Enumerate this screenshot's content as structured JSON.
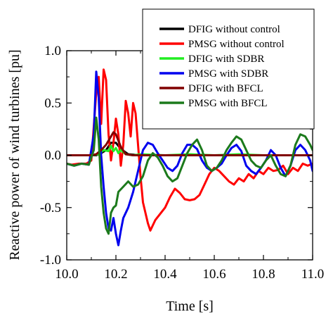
{
  "chart_data": {
    "type": "line",
    "xlabel": "Time [s]",
    "ylabel": "Reactive power of wind turbines [pu]",
    "xlim": [
      10.0,
      11.0
    ],
    "ylim": [
      -1.0,
      1.0
    ],
    "xticks": [
      10.0,
      10.2,
      10.4,
      10.6,
      10.8,
      11.0
    ],
    "xtick_labels": [
      "10.0",
      "10.2",
      "10.4",
      "10.6",
      "10.8",
      "11.0"
    ],
    "yticks": [
      1.0,
      0.5,
      0.0,
      -0.5,
      -1.0
    ],
    "ytick_labels": [
      "1.0",
      "0.5",
      "0.0",
      "-0.5",
      "-1.0"
    ],
    "grid": false,
    "legend_position": "top-right",
    "series": [
      {
        "name": "DFIG without control",
        "color": "#000000",
        "points": [
          [
            10.0,
            0.0
          ],
          [
            10.1,
            0.0
          ],
          [
            10.12,
            0.0
          ],
          [
            10.14,
            0.02
          ],
          [
            10.16,
            0.05
          ],
          [
            10.18,
            0.12
          ],
          [
            10.2,
            0.12
          ],
          [
            10.22,
            0.06
          ],
          [
            10.25,
            0.01
          ],
          [
            10.3,
            0.0
          ],
          [
            11.0,
            0.0
          ]
        ]
      },
      {
        "name": "PMSG without control",
        "color": "#ff0000",
        "points": [
          [
            10.0,
            -0.08
          ],
          [
            10.02,
            -0.09
          ],
          [
            10.05,
            -0.08
          ],
          [
            10.08,
            -0.08
          ],
          [
            10.1,
            -0.05
          ],
          [
            10.12,
            0.6
          ],
          [
            10.13,
            0.75
          ],
          [
            10.14,
            0.3
          ],
          [
            10.15,
            0.82
          ],
          [
            10.16,
            0.72
          ],
          [
            10.17,
            0.2
          ],
          [
            10.18,
            -0.05
          ],
          [
            10.19,
            0.12
          ],
          [
            10.2,
            0.35
          ],
          [
            10.21,
            0.2
          ],
          [
            10.22,
            -0.1
          ],
          [
            10.23,
            0.1
          ],
          [
            10.24,
            0.52
          ],
          [
            10.25,
            0.4
          ],
          [
            10.26,
            0.18
          ],
          [
            10.27,
            0.5
          ],
          [
            10.28,
            0.4
          ],
          [
            10.29,
            0.1
          ],
          [
            10.3,
            -0.2
          ],
          [
            10.31,
            -0.45
          ],
          [
            10.33,
            -0.65
          ],
          [
            10.34,
            -0.72
          ],
          [
            10.36,
            -0.62
          ],
          [
            10.38,
            -0.56
          ],
          [
            10.4,
            -0.5
          ],
          [
            10.42,
            -0.4
          ],
          [
            10.44,
            -0.32
          ],
          [
            10.46,
            -0.36
          ],
          [
            10.48,
            -0.42
          ],
          [
            10.5,
            -0.43
          ],
          [
            10.52,
            -0.42
          ],
          [
            10.54,
            -0.38
          ],
          [
            10.56,
            -0.28
          ],
          [
            10.58,
            -0.18
          ],
          [
            10.6,
            -0.12
          ],
          [
            10.62,
            -0.15
          ],
          [
            10.64,
            -0.2
          ],
          [
            10.66,
            -0.25
          ],
          [
            10.68,
            -0.28
          ],
          [
            10.7,
            -0.22
          ],
          [
            10.72,
            -0.25
          ],
          [
            10.74,
            -0.18
          ],
          [
            10.76,
            -0.22
          ],
          [
            10.78,
            -0.15
          ],
          [
            10.8,
            -0.18
          ],
          [
            10.82,
            -0.12
          ],
          [
            10.84,
            -0.15
          ],
          [
            10.86,
            -0.14
          ],
          [
            10.88,
            -0.1
          ],
          [
            10.9,
            -0.18
          ],
          [
            10.92,
            -0.12
          ],
          [
            10.94,
            -0.15
          ],
          [
            10.96,
            -0.08
          ],
          [
            10.98,
            -0.1
          ],
          [
            11.0,
            -0.08
          ]
        ]
      },
      {
        "name": "DFIG with SDBR",
        "color": "#22ee22",
        "points": [
          [
            10.0,
            0.0
          ],
          [
            10.1,
            0.0
          ],
          [
            10.13,
            0.01
          ],
          [
            10.15,
            0.05
          ],
          [
            10.17,
            0.04
          ],
          [
            10.18,
            0.09
          ],
          [
            10.19,
            0.04
          ],
          [
            10.2,
            0.07
          ],
          [
            10.21,
            0.02
          ],
          [
            10.22,
            0.05
          ],
          [
            10.24,
            0.01
          ],
          [
            10.27,
            0.0
          ],
          [
            10.3,
            0.01
          ],
          [
            10.4,
            0.0
          ],
          [
            10.5,
            0.01
          ],
          [
            10.6,
            0.0
          ],
          [
            10.7,
            0.01
          ],
          [
            10.8,
            0.0
          ],
          [
            11.0,
            0.0
          ]
        ]
      },
      {
        "name": "PMSG with SDBR",
        "color": "#0000ee",
        "points": [
          [
            10.0,
            -0.08
          ],
          [
            10.03,
            -0.1
          ],
          [
            10.06,
            -0.08
          ],
          [
            10.09,
            -0.09
          ],
          [
            10.11,
            0.2
          ],
          [
            10.12,
            0.8
          ],
          [
            10.13,
            0.55
          ],
          [
            10.14,
            0.0
          ],
          [
            10.15,
            -0.3
          ],
          [
            10.16,
            -0.55
          ],
          [
            10.17,
            -0.7
          ],
          [
            10.18,
            -0.72
          ],
          [
            10.19,
            -0.6
          ],
          [
            10.2,
            -0.75
          ],
          [
            10.21,
            -0.86
          ],
          [
            10.22,
            -0.72
          ],
          [
            10.23,
            -0.6
          ],
          [
            10.25,
            -0.5
          ],
          [
            10.27,
            -0.35
          ],
          [
            10.29,
            -0.15
          ],
          [
            10.31,
            0.05
          ],
          [
            10.33,
            0.12
          ],
          [
            10.35,
            0.1
          ],
          [
            10.37,
            0.02
          ],
          [
            10.39,
            -0.05
          ],
          [
            10.41,
            -0.12
          ],
          [
            10.43,
            -0.15
          ],
          [
            10.45,
            -0.1
          ],
          [
            10.47,
            0.02
          ],
          [
            10.49,
            0.1
          ],
          [
            10.51,
            0.1
          ],
          [
            10.53,
            0.06
          ],
          [
            10.55,
            -0.05
          ],
          [
            10.57,
            -0.12
          ],
          [
            10.59,
            -0.15
          ],
          [
            10.61,
            -0.12
          ],
          [
            10.63,
            -0.08
          ],
          [
            10.65,
            0.0
          ],
          [
            10.67,
            0.07
          ],
          [
            10.69,
            0.1
          ],
          [
            10.71,
            0.04
          ],
          [
            10.73,
            -0.1
          ],
          [
            10.75,
            -0.15
          ],
          [
            10.77,
            -0.18
          ],
          [
            10.79,
            -0.12
          ],
          [
            10.81,
            -0.05
          ],
          [
            10.83,
            0.05
          ],
          [
            10.85,
            0.0
          ],
          [
            10.87,
            -0.12
          ],
          [
            10.89,
            -0.2
          ],
          [
            10.91,
            -0.1
          ],
          [
            10.93,
            0.05
          ],
          [
            10.95,
            0.1
          ],
          [
            10.97,
            0.05
          ],
          [
            10.99,
            -0.05
          ],
          [
            11.0,
            -0.15
          ]
        ]
      },
      {
        "name": "DFIG with BFCL",
        "color": "#800000",
        "points": [
          [
            10.0,
            0.0
          ],
          [
            10.1,
            0.0
          ],
          [
            10.12,
            0.01
          ],
          [
            10.14,
            0.05
          ],
          [
            10.16,
            0.1
          ],
          [
            10.18,
            0.18
          ],
          [
            10.19,
            0.22
          ],
          [
            10.2,
            0.2
          ],
          [
            10.22,
            0.08
          ],
          [
            10.24,
            0.01
          ],
          [
            10.27,
            0.0
          ],
          [
            11.0,
            0.0
          ]
        ]
      },
      {
        "name": "PMSG with BFCL",
        "color": "#1c7a1c",
        "points": [
          [
            10.0,
            -0.08
          ],
          [
            10.03,
            -0.1
          ],
          [
            10.06,
            -0.08
          ],
          [
            10.09,
            -0.09
          ],
          [
            10.11,
            0.05
          ],
          [
            10.12,
            0.36
          ],
          [
            10.13,
            0.15
          ],
          [
            10.14,
            -0.3
          ],
          [
            10.15,
            -0.55
          ],
          [
            10.16,
            -0.7
          ],
          [
            10.17,
            -0.75
          ],
          [
            10.18,
            -0.55
          ],
          [
            10.19,
            -0.5
          ],
          [
            10.2,
            -0.48
          ],
          [
            10.21,
            -0.35
          ],
          [
            10.23,
            -0.3
          ],
          [
            10.25,
            -0.25
          ],
          [
            10.27,
            -0.3
          ],
          [
            10.29,
            -0.28
          ],
          [
            10.31,
            -0.2
          ],
          [
            10.33,
            -0.05
          ],
          [
            10.35,
            0.02
          ],
          [
            10.37,
            -0.02
          ],
          [
            10.39,
            -0.1
          ],
          [
            10.41,
            -0.2
          ],
          [
            10.43,
            -0.25
          ],
          [
            10.45,
            -0.22
          ],
          [
            10.47,
            -0.1
          ],
          [
            10.49,
            0.02
          ],
          [
            10.51,
            0.1
          ],
          [
            10.53,
            0.15
          ],
          [
            10.55,
            0.05
          ],
          [
            10.57,
            -0.1
          ],
          [
            10.59,
            -0.15
          ],
          [
            10.61,
            -0.12
          ],
          [
            10.63,
            -0.05
          ],
          [
            10.65,
            0.05
          ],
          [
            10.67,
            0.12
          ],
          [
            10.69,
            0.18
          ],
          [
            10.71,
            0.15
          ],
          [
            10.73,
            0.05
          ],
          [
            10.75,
            -0.05
          ],
          [
            10.77,
            -0.1
          ],
          [
            10.79,
            -0.12
          ],
          [
            10.81,
            -0.05
          ],
          [
            10.83,
            0.0
          ],
          [
            10.85,
            -0.1
          ],
          [
            10.87,
            -0.18
          ],
          [
            10.89,
            -0.2
          ],
          [
            10.91,
            -0.1
          ],
          [
            10.93,
            0.1
          ],
          [
            10.95,
            0.2
          ],
          [
            10.97,
            0.18
          ],
          [
            10.99,
            0.1
          ],
          [
            11.0,
            0.05
          ]
        ]
      }
    ]
  }
}
